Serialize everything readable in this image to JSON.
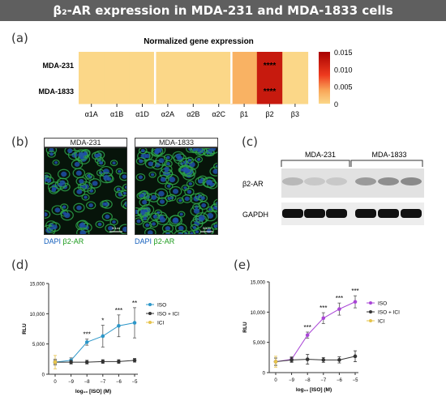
{
  "header": {
    "title": "β₂-AR expression in MDA-231 and MDA-1833 cells"
  },
  "panels": {
    "a": "(a)",
    "b": "(b)",
    "c": "(c)",
    "d": "(d)",
    "e": "(e)"
  },
  "colors": {
    "banner": "#5f5f5f",
    "heat_low": "#fbd889",
    "heat_high": "#b00000",
    "iso_d": "#2c97c9",
    "iso_e": "#a945d6",
    "iso_ici": "#333333",
    "ici": "#e6c34a",
    "dapi": "#1560bd",
    "b2ar": "#1a9a1a"
  },
  "panel_b": {
    "cells": [
      "MDA-231",
      "MDA-1833"
    ],
    "stain_dapi": "DAPI",
    "stain_b2ar": "β2-AR",
    "scalebar": "50um"
  },
  "panel_c": {
    "cells": [
      "MDA-231",
      "MDA-1833"
    ],
    "rows": [
      "β2-AR",
      "GAPDH"
    ]
  },
  "chart_data": [
    {
      "type": "heatmap",
      "title": "Normalized gene expression",
      "rows": [
        "MDA-231",
        "MDA-1833"
      ],
      "columns": [
        "α1A",
        "α1B",
        "α1D",
        "α2A",
        "α2B",
        "α2C",
        "β1",
        "β2",
        "β3"
      ],
      "values": [
        [
          0.0001,
          0.0001,
          0.0001,
          0.0001,
          0.0001,
          0.0001,
          0.003,
          0.012,
          0.0001
        ],
        [
          0.0001,
          0.0001,
          0.0001,
          0.0001,
          0.0001,
          0.0001,
          0.003,
          0.012,
          0.0001
        ]
      ],
      "annotations": [
        "****",
        "****"
      ],
      "colorbar": {
        "min": 0,
        "max": 0.015,
        "ticks": [
          "0.015",
          "0.010",
          "0.005",
          "0"
        ]
      }
    },
    {
      "type": "line",
      "xlabel": "log₁₀ [ISO] (M)",
      "ylabel": "RLU",
      "x": [
        "0",
        "−9",
        "−8",
        "−7",
        "−6",
        "−5"
      ],
      "ylim": [
        0,
        15000
      ],
      "yticks": [
        "0",
        "5,000",
        "10,000",
        "15,000"
      ],
      "series": [
        {
          "name": "ISO",
          "values": [
            2000,
            2300,
            5300,
            6300,
            8000,
            8500
          ],
          "err": [
            500,
            400,
            500,
            1800,
            1800,
            2500
          ]
        },
        {
          "name": "ISO + ICI",
          "values": [
            2000,
            2000,
            2000,
            2100,
            2100,
            2300
          ],
          "err": [
            300,
            300,
            300,
            300,
            300,
            300
          ]
        },
        {
          "name": "ICI",
          "values": [
            2000,
            null,
            null,
            null,
            null,
            null
          ],
          "err": [
            1100,
            null,
            null,
            null,
            null,
            null
          ]
        }
      ],
      "annotations": [
        "",
        "",
        "***",
        "*",
        "***",
        "**"
      ]
    },
    {
      "type": "line",
      "xlabel": "log₁₀ [ISO] (M)",
      "ylabel": "RLU",
      "x": [
        "0",
        "−9",
        "−8",
        "−7",
        "−6",
        "−5"
      ],
      "ylim": [
        0,
        15000
      ],
      "yticks": [
        "0",
        "5,000",
        "10,000",
        "15,000"
      ],
      "series": [
        {
          "name": "ISO",
          "values": [
            1800,
            2200,
            6200,
            9000,
            10500,
            11700
          ],
          "err": [
            600,
            400,
            500,
            900,
            1000,
            1000
          ]
        },
        {
          "name": "ISO + ICI",
          "values": [
            1800,
            2100,
            2200,
            2100,
            2100,
            2700
          ],
          "err": [
            600,
            400,
            800,
            400,
            500,
            900
          ]
        },
        {
          "name": "ICI",
          "values": [
            1800,
            null,
            null,
            null,
            null,
            null
          ],
          "err": [
            900,
            null,
            null,
            null,
            null,
            null
          ]
        }
      ],
      "annotations": [
        "",
        "",
        "***",
        "***",
        "***",
        "***"
      ]
    }
  ]
}
